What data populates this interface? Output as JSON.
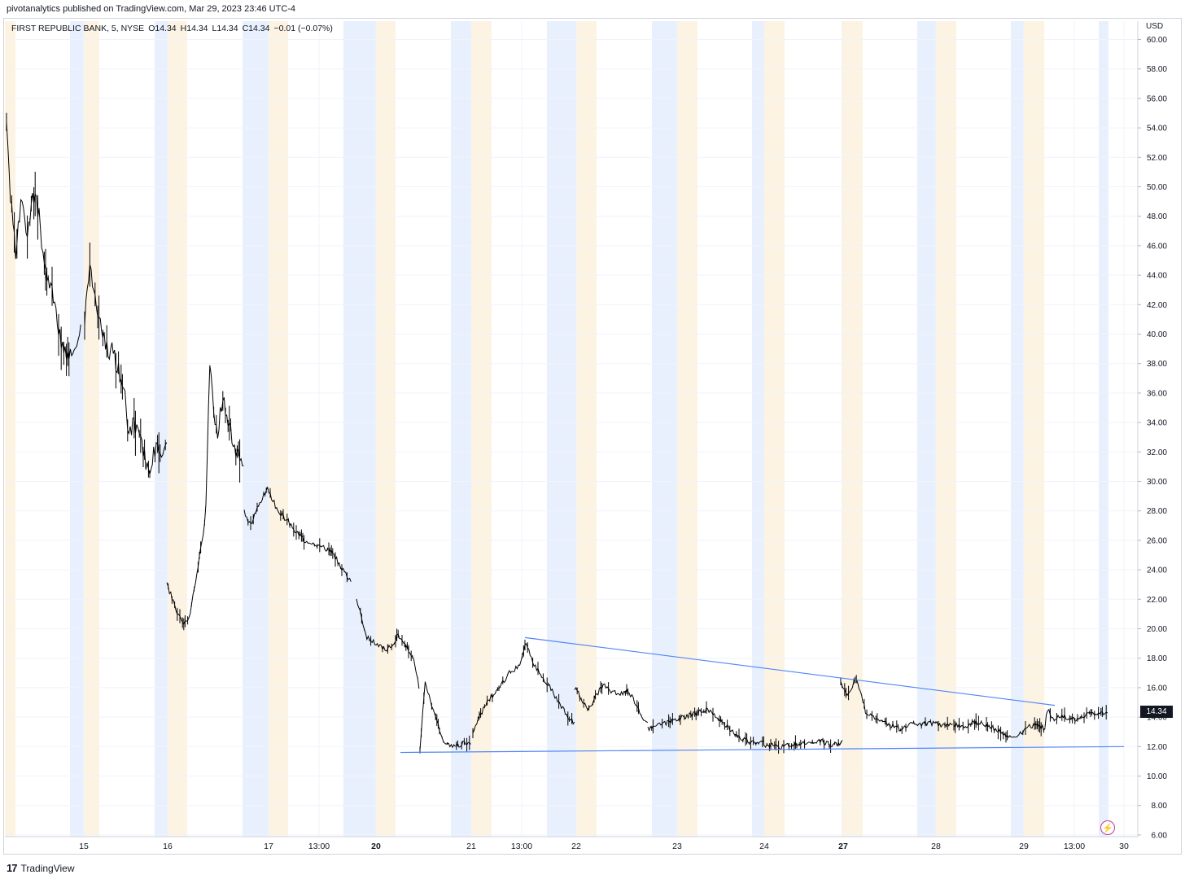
{
  "header": {
    "published": "pivotanalytics published on TradingView.com, Mar 29, 2023 23:46 UTC-4"
  },
  "legend": {
    "symbol": "FIRST REPUBLIC BANK, 5, NYSE",
    "open": "O14.34",
    "high": "H14.34",
    "low": "L14.34",
    "close": "C14.34",
    "change": "−0.01 (−0.07%)"
  },
  "axis": {
    "currency": "USD",
    "last_price": "14.34"
  },
  "footer": {
    "logo": "17",
    "brand": "TradingView"
  },
  "colors": {
    "candles": "#000000",
    "trendline": "#4f86f7",
    "premarket_band": "#e8f0fe",
    "afterhours_band": "#fdf3e3",
    "grid": "#f0f3fa",
    "alert_icon": "#c0369a"
  },
  "icons": {
    "alert": "lightning-bolt-icon"
  },
  "chart_data": {
    "type": "candlestick",
    "title": "FIRST REPUBLIC BANK, 5, NYSE",
    "interval": "5",
    "ylim": [
      6,
      61
    ],
    "y_ticks": [
      "60.00",
      "58.00",
      "56.00",
      "54.00",
      "52.00",
      "50.00",
      "48.00",
      "46.00",
      "44.00",
      "42.00",
      "40.00",
      "38.00",
      "36.00",
      "34.00",
      "32.00",
      "30.00",
      "28.00",
      "26.00",
      "24.00",
      "22.00",
      "20.00",
      "18.00",
      "16.00",
      "14.00",
      "12.00",
      "10.00",
      "8.00",
      "6.00"
    ],
    "x_ticks": [
      {
        "label": "15",
        "bold": false
      },
      {
        "label": "16",
        "bold": false
      },
      {
        "label": "17",
        "bold": false
      },
      {
        "label": "13:00",
        "bold": false
      },
      {
        "label": "20",
        "bold": true
      },
      {
        "label": "21",
        "bold": false
      },
      {
        "label": "13:00",
        "bold": false
      },
      {
        "label": "22",
        "bold": false
      },
      {
        "label": "23",
        "bold": false
      },
      {
        "label": "24",
        "bold": false
      },
      {
        "label": "27",
        "bold": true
      },
      {
        "label": "28",
        "bold": false
      },
      {
        "label": "29",
        "bold": false
      },
      {
        "label": "13:00",
        "bold": false
      },
      {
        "label": "30",
        "bold": false
      }
    ],
    "grid": true,
    "last_close": 14.34,
    "trendlines": [
      {
        "name": "upper",
        "from": {
          "t": "Mar 21 13:00",
          "price": 19.4
        },
        "to": {
          "t": "Mar 29",
          "price": 14.8
        }
      },
      {
        "name": "lower",
        "from": {
          "t": "Mar 20",
          "price": 11.6
        },
        "to": {
          "t": "Mar 30",
          "price": 12.0
        }
      }
    ],
    "series": [
      {
        "sessions": [
          {
            "day": "14",
            "points": [
              [
                0,
                54.8
              ],
              [
                0.04,
                49.8
              ],
              [
                0.12,
                45.5
              ],
              [
                0.2,
                49.2
              ],
              [
                0.28,
                47.0
              ],
              [
                0.36,
                49.6
              ],
              [
                0.44,
                47.8
              ],
              [
                0.52,
                44.2
              ],
              [
                0.62,
                42.8
              ],
              [
                0.72,
                39.5
              ],
              [
                0.84,
                38.2
              ],
              [
                0.94,
                39.8
              ],
              [
                1.0,
                40.6
              ]
            ]
          },
          {
            "day": "15",
            "points": [
              [
                0,
                41.2
              ],
              [
                0.06,
                44.8
              ],
              [
                0.12,
                42.5
              ],
              [
                0.2,
                40.8
              ],
              [
                0.28,
                39.0
              ],
              [
                0.34,
                38.8
              ],
              [
                0.4,
                37.8
              ],
              [
                0.48,
                36.5
              ],
              [
                0.54,
                33.0
              ],
              [
                0.6,
                33.8
              ],
              [
                0.7,
                32.5
              ],
              [
                0.78,
                30.5
              ],
              [
                0.86,
                32.2
              ],
              [
                0.94,
                31.8
              ],
              [
                1.0,
                33.2
              ]
            ]
          },
          {
            "day": "16",
            "points": [
              [
                0,
                23.0
              ],
              [
                0.06,
                22.2
              ],
              [
                0.14,
                21.0
              ],
              [
                0.22,
                20.2
              ],
              [
                0.3,
                21.0
              ],
              [
                0.38,
                23.5
              ],
              [
                0.44,
                25.5
              ],
              [
                0.5,
                27.5
              ],
              [
                0.56,
                38.2
              ],
              [
                0.6,
                35.0
              ],
              [
                0.66,
                33.5
              ],
              [
                0.72,
                35.5
              ],
              [
                0.78,
                34.2
              ],
              [
                0.84,
                33.0
              ],
              [
                0.9,
                32.0
              ],
              [
                1.0,
                30.8
              ]
            ]
          },
          {
            "day": "17",
            "points": [
              [
                0,
                28.0
              ],
              [
                0.06,
                27.0
              ],
              [
                0.14,
                28.5
              ],
              [
                0.22,
                29.5
              ],
              [
                0.3,
                28.2
              ],
              [
                0.38,
                27.5
              ],
              [
                0.46,
                26.8
              ],
              [
                0.56,
                26.0
              ],
              [
                0.66,
                25.8
              ],
              [
                0.74,
                25.5
              ],
              [
                0.82,
                25.2
              ],
              [
                0.9,
                24.2
              ],
              [
                0.96,
                23.6
              ],
              [
                1.0,
                23.2
              ]
            ]
          },
          {
            "day": "20",
            "points": [
              [
                0,
                22.0
              ],
              [
                0.08,
                20.8
              ],
              [
                0.16,
                19.4
              ],
              [
                0.26,
                19.1
              ],
              [
                0.36,
                18.8
              ],
              [
                0.46,
                18.6
              ],
              [
                0.56,
                18.8
              ],
              [
                0.66,
                19.6
              ],
              [
                0.76,
                19.0
              ],
              [
                0.86,
                18.3
              ],
              [
                0.93,
                17.5
              ],
              [
                1.0,
                15.5
              ]
            ]
          },
          {
            "day": "20b",
            "points": [
              [
                0,
                11.8
              ],
              [
                0.1,
                16.5
              ],
              [
                0.22,
                14.8
              ],
              [
                0.34,
                13.5
              ],
              [
                0.46,
                12.2
              ],
              [
                0.6,
                12.0
              ],
              [
                0.74,
                12.1
              ],
              [
                0.86,
                12.3
              ],
              [
                1.0,
                12.0
              ]
            ]
          },
          {
            "day": "21",
            "points": [
              [
                0,
                13.0
              ],
              [
                0.08,
                14.2
              ],
              [
                0.16,
                15.2
              ],
              [
                0.26,
                16.0
              ],
              [
                0.36,
                17.0
              ],
              [
                0.46,
                17.5
              ],
              [
                0.52,
                19.0
              ],
              [
                0.6,
                17.5
              ],
              [
                0.68,
                16.8
              ],
              [
                0.76,
                16.0
              ],
              [
                0.84,
                15.0
              ],
              [
                0.92,
                14.2
              ],
              [
                1.0,
                13.5
              ]
            ]
          },
          {
            "day": "22",
            "points": [
              [
                0,
                16.0
              ],
              [
                0.1,
                15.2
              ],
              [
                0.2,
                14.5
              ],
              [
                0.3,
                15.5
              ],
              [
                0.4,
                16.2
              ],
              [
                0.5,
                15.8
              ],
              [
                0.6,
                15.5
              ],
              [
                0.7,
                15.8
              ],
              [
                0.8,
                15.3
              ],
              [
                0.9,
                14.2
              ],
              [
                1.0,
                13.6
              ]
            ]
          },
          {
            "day": "23",
            "points": [
              [
                0,
                13.2
              ],
              [
                0.1,
                13.5
              ],
              [
                0.2,
                13.7
              ],
              [
                0.3,
                14.0
              ],
              [
                0.4,
                14.2
              ],
              [
                0.5,
                14.5
              ],
              [
                0.6,
                14.0
              ],
              [
                0.7,
                13.2
              ],
              [
                0.8,
                12.6
              ],
              [
                0.9,
                12.3
              ],
              [
                1.0,
                12.4
              ]
            ]
          },
          {
            "day": "24",
            "points": [
              [
                0,
                12.0
              ],
              [
                0.1,
                12.1
              ],
              [
                0.2,
                11.9
              ],
              [
                0.3,
                12.1
              ],
              [
                0.4,
                12.2
              ],
              [
                0.5,
                12.3
              ],
              [
                0.6,
                12.2
              ],
              [
                0.7,
                12.4
              ],
              [
                0.8,
                12.2
              ],
              [
                0.9,
                12.1
              ],
              [
                1.0,
                12.3
              ]
            ]
          },
          {
            "day": "27",
            "points": [
              [
                0,
                16.4
              ],
              [
                0.06,
                15.6
              ],
              [
                0.14,
                16.6
              ],
              [
                0.22,
                14.4
              ],
              [
                0.32,
                13.8
              ],
              [
                0.42,
                13.5
              ],
              [
                0.52,
                13.2
              ],
              [
                0.62,
                13.6
              ],
              [
                0.72,
                13.5
              ],
              [
                0.82,
                13.6
              ],
              [
                0.92,
                13.4
              ],
              [
                1.0,
                13.5
              ]
            ]
          },
          {
            "day": "28",
            "points": [
              [
                0,
                13.5
              ],
              [
                0.1,
                13.3
              ],
              [
                0.2,
                13.6
              ],
              [
                0.3,
                13.7
              ],
              [
                0.4,
                13.3
              ],
              [
                0.5,
                13.0
              ],
              [
                0.6,
                12.6
              ],
              [
                0.7,
                12.8
              ],
              [
                0.8,
                13.3
              ],
              [
                0.9,
                13.5
              ],
              [
                1.0,
                13.2
              ]
            ]
          },
          {
            "day": "29",
            "points": [
              [
                0,
                13.4
              ],
              [
                0.04,
                14.6
              ],
              [
                0.12,
                13.9
              ],
              [
                0.22,
                14.1
              ],
              [
                0.32,
                14.0
              ],
              [
                0.44,
                13.8
              ],
              [
                0.56,
                14.0
              ],
              [
                0.68,
                14.2
              ],
              [
                0.8,
                14.2
              ],
              [
                0.9,
                14.3
              ],
              [
                1.0,
                14.34
              ]
            ]
          }
        ]
      }
    ]
  }
}
